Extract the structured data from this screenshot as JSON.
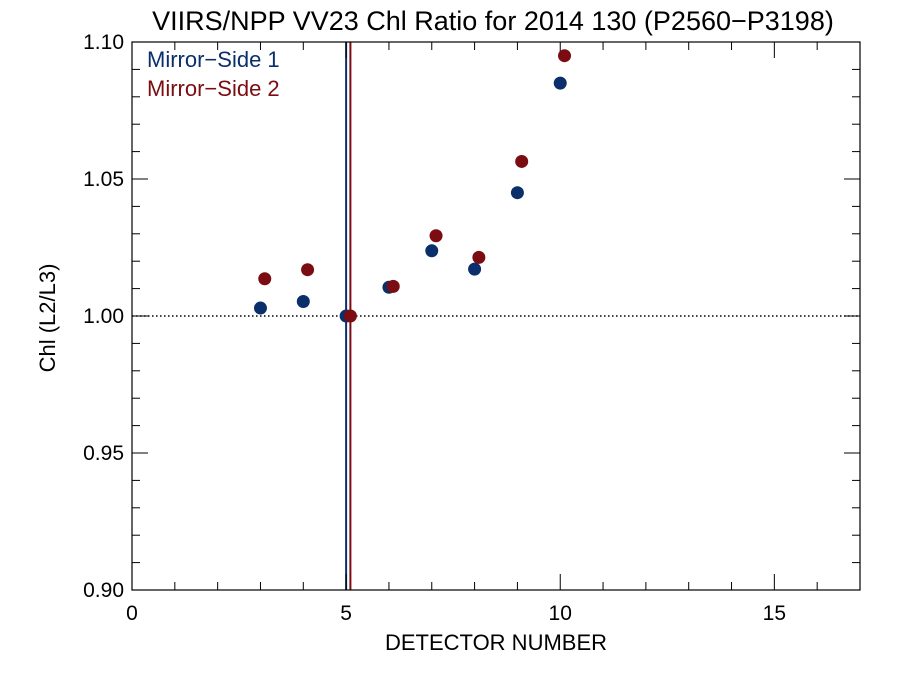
{
  "chart_data": {
    "type": "scatter",
    "title": "VIIRS/NPP VV23 Chl Ratio for 2014 130 (P2560−P3198)",
    "xlabel": "DETECTOR NUMBER",
    "ylabel": "Chl (L2/L3)",
    "xlim": [
      0,
      17
    ],
    "ylim": [
      0.9,
      1.1
    ],
    "x_ticks": [
      0,
      5,
      10,
      15
    ],
    "x_tick_labels": [
      "0",
      "5",
      "10",
      "15"
    ],
    "x_minor_step": 1,
    "y_ticks": [
      0.9,
      0.95,
      1.0,
      1.05,
      1.1
    ],
    "y_tick_labels": [
      "0.90",
      "0.95",
      "1.00",
      "1.05",
      "1.10"
    ],
    "y_minor_step": 0.01,
    "grid": false,
    "legend_position": "top-left",
    "reference_line": {
      "y": 1.0,
      "style": "dotted"
    },
    "vertical_lines": [
      {
        "x": 5.0,
        "color": "#0b2f6b"
      },
      {
        "x": 5.1,
        "color": "#7a0c12"
      }
    ],
    "series": [
      {
        "name": "Mirror−Side 1",
        "color": "#0b2f6b",
        "x": [
          3,
          4,
          5,
          6,
          7,
          8,
          9,
          10
        ],
        "y": [
          1.0029,
          1.0053,
          1.0,
          1.0105,
          1.0238,
          1.0171,
          1.045,
          1.085
        ]
      },
      {
        "name": "Mirror−Side 2",
        "color": "#7a0c12",
        "x": [
          3.1,
          4.1,
          5.1,
          6.1,
          7.1,
          8.1,
          9.1,
          10.1
        ],
        "y": [
          1.0136,
          1.0169,
          1.0,
          1.0108,
          1.0293,
          1.0214,
          1.0564,
          1.095
        ]
      }
    ]
  }
}
